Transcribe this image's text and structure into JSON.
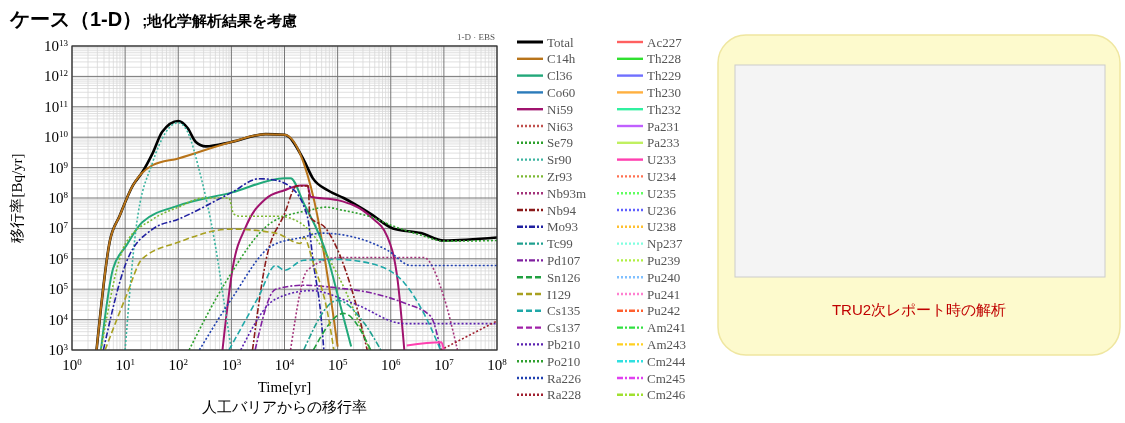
{
  "chart_data": [
    {
      "type": "line",
      "title": "ケース（1-D）",
      "subtitle": ";地化学解析結果を考慮",
      "xlabel": "Time[yr]",
      "ylabel": "移行率[Bq/yr]",
      "annotations": [
        "1-D · EBS",
        "人工バリアからの移行率"
      ],
      "log": "xy",
      "grid": true,
      "legend": "right",
      "xlim": [
        1,
        100000000
      ],
      "ylim": [
        1000,
        10000000000000
      ],
      "xticks": [
        {
          "value": 1,
          "label": "10$^{0}$"
        },
        {
          "value": 10,
          "label": "10$^{1}$"
        },
        {
          "value": 100,
          "label": "10$^{2}$"
        },
        {
          "value": 1000,
          "label": "10$^{3}$"
        },
        {
          "value": 10000,
          "label": "10$^{4}$"
        },
        {
          "value": 100000,
          "label": "10$^{5}$"
        },
        {
          "value": 1000000,
          "label": "10$^{6}$"
        },
        {
          "value": 10000000,
          "label": "10$^{7}$"
        },
        {
          "value": 100000000,
          "label": "10$^{8}$"
        }
      ],
      "yticks": [
        {
          "value": 1000,
          "label": "10$^{3}$"
        },
        {
          "value": 10000,
          "label": "10$^{4}$"
        },
        {
          "value": 100000,
          "label": "10$^{5}$"
        },
        {
          "value": 1000000,
          "label": "10$^{6}$"
        },
        {
          "value": 10000000,
          "label": "10$^{7}$"
        },
        {
          "value": 100000000,
          "label": "10$^{8}$"
        },
        {
          "value": 1000000000,
          "label": "10$^{9}$"
        },
        {
          "value": 10000000000,
          "label": "10$^{10}$"
        },
        {
          "value": 100000000000,
          "label": "10$^{11}$"
        },
        {
          "value": 1000000000000,
          "label": "10$^{12}$"
        },
        {
          "value": 10000000000000,
          "label": "10$^{13}$"
        }
      ],
      "series": [
        {
          "name": "Total",
          "color": "#000000",
          "line_style": "solid",
          "x": [
            2.9,
            5.1,
            7.9,
            14,
            21,
            33,
            50,
            100,
            150,
            214,
            330,
            1000,
            4400,
            10000,
            23000,
            34000,
            65000,
            130000,
            420000,
            1100000,
            3700000,
            10000000,
            100000000
          ],
          "values": [
            1000,
            3500000,
            26000000,
            260000000,
            700000000,
            3000000000,
            15000000000,
            34000000000,
            20000000000,
            7000000000,
            5000000000,
            7000000000,
            12600000000,
            12000000000,
            1800000000,
            450000000,
            180000000,
            100000000,
            30000000,
            10000000,
            7000000,
            4000000,
            5000000
          ]
        },
        {
          "name": "C14h",
          "color": "#b8741a",
          "line_style": "solid",
          "x": [
            2.9,
            5.1,
            7.9,
            14,
            33,
            100,
            1000,
            4400,
            10000,
            23000,
            42000,
            65000,
            100000
          ],
          "values": [
            1000,
            3500000,
            26000000,
            260000000,
            1200000000,
            2000000000,
            7000000000,
            12600000000,
            12000000000,
            1400000000,
            24000000,
            250000,
            1300
          ]
        },
        {
          "name": "Cl36",
          "color": "#22a87a",
          "line_style": "solid",
          "x": [
            3.5,
            5.9,
            10.5,
            21,
            100,
            1000,
            10000,
            13000,
            23000,
            65000,
            110000,
            180000
          ],
          "values": [
            1000,
            460000,
            2700000,
            16000000,
            56000000,
            150000000,
            450000000,
            450000000,
            68000000,
            1100000,
            34000,
            1300
          ]
        },
        {
          "name": "Co60",
          "color": "#2b7bba",
          "line_style": "solid"
        },
        {
          "name": "Ni59",
          "color": "#a0136e",
          "line_style": "solid",
          "x": [
            680,
            1050,
            1900,
            4400,
            10000,
            20000,
            27000,
            31000,
            100000,
            420000,
            870000,
            1350000,
            1800000
          ],
          "values": [
            1000,
            460000,
            12000000,
            93000000,
            180000000,
            260000000,
            260000000,
            110000000,
            85000000,
            24000000,
            5200000,
            190000,
            1000
          ]
        },
        {
          "name": "Ni63",
          "color": "#c0504d",
          "line_style": "dotted"
        },
        {
          "name": "Se79",
          "color": "#2ca02c",
          "line_style": "dotted",
          "x": [
            160,
            780,
            5800,
            30000,
            60000,
            120000,
            420000,
            1100000,
            3700000,
            10000000,
            100000000
          ],
          "values": [
            1000,
            170000,
            16000000,
            40000000,
            50000000,
            40000000,
            24000000,
            12000000,
            6000000,
            3800000,
            4000000
          ]
        },
        {
          "name": "Sr90",
          "color": "#3cb4a0",
          "line_style": "dotted",
          "x": [
            10,
            16,
            33,
            100,
            150,
            245,
            500,
            780,
            1000
          ],
          "values": [
            1000,
            9500000,
            1500000000,
            30000000000,
            15000000000,
            900000000,
            2700000,
            17000,
            1000
          ]
        },
        {
          "name": "Zr93",
          "color": "#7cb832",
          "line_style": "dotted",
          "x": [
            3.5,
            10,
            33,
            100,
            300,
            900,
            1100,
            1500,
            8000,
            20000,
            100000,
            400000
          ],
          "values": [
            1000,
            3000000,
            20000000,
            50000000,
            100000000,
            100000000,
            30000000,
            25000000,
            25000000,
            15000000,
            300000,
            1000
          ]
        },
        {
          "name": "Nb93m",
          "color": "#a3337a",
          "line_style": "dotted",
          "x": [
            13000,
            27000,
            100000,
            4200000,
            10000000,
            18000000
          ],
          "values": [
            1000,
            420000,
            1100000,
            1100000,
            55000,
            1000
          ]
        },
        {
          "name": "Nb94",
          "color": "#8b1a1a",
          "line_style": "dashdot",
          "x": [
            2500,
            4400,
            10000,
            17000,
            28000,
            30000,
            60000,
            200000,
            360000
          ],
          "values": [
            1000,
            760000,
            30000000,
            250000000,
            250000000,
            24000000,
            10000000,
            60000,
            1000
          ]
        },
        {
          "name": "Mo93",
          "color": "#2020a0",
          "line_style": "dashdot",
          "x": [
            3.9,
            10.5,
            33,
            100,
            1000,
            3300,
            6000,
            13000,
            27000,
            35000,
            48000,
            55000
          ],
          "values": [
            1000,
            760000,
            9500000,
            20000000,
            150000000,
            430000000,
            400000000,
            230000000,
            24000000,
            700000,
            16000,
            1000
          ]
        },
        {
          "name": "Tc99",
          "color": "#20a090",
          "line_style": "dashdot",
          "x": [
            23000,
            100000,
            320000,
            650000
          ],
          "values": [
            1000,
            43000,
            7400,
            1000
          ]
        },
        {
          "name": "Pd107",
          "color": "#8020a0",
          "line_style": "dashdot",
          "x": [
            2800,
            6800,
            23000,
            100000,
            420000,
            1800000,
            5600000,
            8700000
          ],
          "values": [
            1000,
            100000,
            135000,
            110000,
            76000,
            35000,
            13000,
            1000
          ]
        },
        {
          "name": "Sn126",
          "color": "#20a040",
          "line_style": "dashed",
          "x": [
            35000,
            130000,
            420000
          ],
          "values": [
            1000,
            16000,
            1000
          ]
        },
        {
          "name": "I129",
          "color": "#a8a020",
          "line_style": "dashed",
          "x": [
            4.2,
            10.5,
            21,
            100,
            1000,
            6800,
            20000,
            23000,
            35000,
            65000,
            85000
          ],
          "values": [
            1000,
            60000,
            1000000,
            3500000,
            9500000,
            7000000,
            3200000,
            5200000,
            700000,
            16000,
            1000
          ]
        },
        {
          "name": "Cs135",
          "color": "#20a8a8",
          "line_style": "dashed",
          "x": [
            900,
            3300,
            6800,
            10000,
            23000,
            100000,
            420000,
            1800000,
            4200000,
            8700000
          ],
          "values": [
            1000,
            60000,
            600000,
            420000,
            900000,
            950000,
            700000,
            160000,
            16000,
            1000
          ]
        },
        {
          "name": "Cs137",
          "color": "#a020a8",
          "line_style": "dashed"
        },
        {
          "name": "Pb210",
          "color": "#5a20b0",
          "line_style": "dotted",
          "x": [
            1500,
            6800,
            32000,
            200000,
            1800000,
            100000000
          ],
          "values": [
            1000,
            47000,
            90000,
            34000,
            7400,
            7400
          ]
        },
        {
          "name": "Po210",
          "color": "#30a030",
          "line_style": "dotted"
        },
        {
          "name": "Ra226",
          "color": "#2040b0",
          "line_style": "dotted",
          "x": [
            250,
            1000,
            5800,
            23000,
            48000,
            200000,
            870000,
            2400000,
            100000000
          ],
          "values": [
            1000,
            47000,
            2700000,
            5200000,
            7000000,
            5200000,
            1900000,
            600000,
            600000
          ]
        },
        {
          "name": "Ra228",
          "color": "#a02030",
          "line_style": "dotted",
          "x": [
            8700000,
            100000000
          ],
          "values": [
            1000,
            9000
          ]
        },
        {
          "name": "Ac227",
          "color": "#ff6060",
          "line_style": "solid"
        },
        {
          "name": "Th228",
          "color": "#30e030",
          "line_style": "solid"
        },
        {
          "name": "Th229",
          "color": "#7070ff",
          "line_style": "solid"
        },
        {
          "name": "Th230",
          "color": "#ffb040",
          "line_style": "solid"
        },
        {
          "name": "Th232",
          "color": "#30f0a0",
          "line_style": "solid"
        },
        {
          "name": "Pa231",
          "color": "#c060ff",
          "line_style": "solid"
        },
        {
          "name": "Pa233",
          "color": "#c0f060",
          "line_style": "solid"
        },
        {
          "name": "U233",
          "color": "#ff40b0",
          "line_style": "solid",
          "x": [
            2000000,
            9000000,
            10000000
          ],
          "values": [
            1400,
            1800,
            1000
          ]
        },
        {
          "name": "U234",
          "color": "#ff7050",
          "line_style": "dotted"
        },
        {
          "name": "U235",
          "color": "#60ff60",
          "line_style": "dotted"
        },
        {
          "name": "U236",
          "color": "#6060ff",
          "line_style": "dotted"
        },
        {
          "name": "U238",
          "color": "#ffc030",
          "line_style": "dotted"
        },
        {
          "name": "Np237",
          "color": "#80ffe0",
          "line_style": "dotted"
        },
        {
          "name": "Pu239",
          "color": "#b0f040",
          "line_style": "dotted"
        },
        {
          "name": "Pu240",
          "color": "#80c0ff",
          "line_style": "dotted"
        },
        {
          "name": "Pu241",
          "color": "#ff80d0",
          "line_style": "dotted"
        },
        {
          "name": "Pu242",
          "color": "#ff6030",
          "line_style": "dashdot"
        },
        {
          "name": "Am241",
          "color": "#30e040",
          "line_style": "dashdot"
        },
        {
          "name": "Am243",
          "color": "#ffd020",
          "line_style": "dashdot"
        },
        {
          "name": "Cm244",
          "color": "#30e0e0",
          "line_style": "dashdot"
        },
        {
          "name": "Cm245",
          "color": "#e040f0",
          "line_style": "dashdot"
        },
        {
          "name": "Cm246",
          "color": "#a0e030",
          "line_style": "dashdot"
        }
      ]
    },
    {
      "type": "other",
      "annotations": [
        "TRU2次レポート時の解析"
      ]
    }
  ]
}
